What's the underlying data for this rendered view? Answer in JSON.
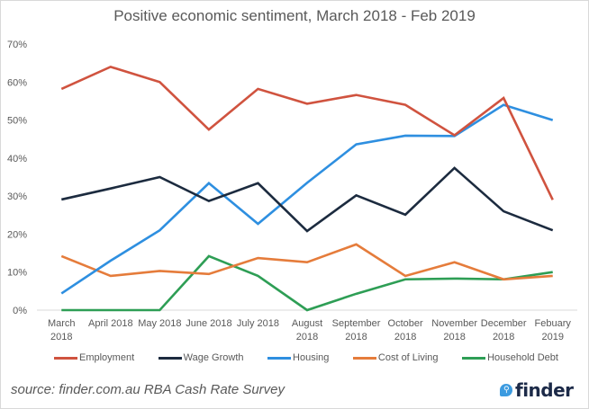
{
  "chart_data": {
    "type": "line",
    "title": "Positive economic sentiment, March 2018 - Feb 2019",
    "xlabel": "",
    "ylabel": "",
    "ylim": [
      0,
      70
    ],
    "yticks": [
      "0%",
      "10%",
      "20%",
      "30%",
      "40%",
      "50%",
      "60%",
      "70%"
    ],
    "ytick_values": [
      0,
      10,
      20,
      30,
      40,
      50,
      60,
      70
    ],
    "grid": false,
    "legend_position": "bottom",
    "categories": [
      [
        "March",
        "2018"
      ],
      [
        "April 2018"
      ],
      [
        "May 2018"
      ],
      [
        "June 2018"
      ],
      [
        "July 2018"
      ],
      [
        "August",
        "2018"
      ],
      [
        "September",
        "2018"
      ],
      [
        "October",
        "2018"
      ],
      [
        "November",
        "2018"
      ],
      [
        "December",
        "2018"
      ],
      [
        "Febuary",
        "2019"
      ]
    ],
    "series": [
      {
        "name": "Employment",
        "color": "#d0533f",
        "values": [
          58.2,
          64,
          60,
          47.5,
          58.2,
          54.3,
          56.6,
          54,
          46,
          55.8,
          29
        ]
      },
      {
        "name": "Wage Growth",
        "color": "#1c2b3f",
        "values": [
          29.1,
          32,
          35,
          28.7,
          33.4,
          20.8,
          30.2,
          25.1,
          37.4,
          26,
          21
        ]
      },
      {
        "name": "Housing",
        "color": "#2e8fe0",
        "values": [
          4.4,
          13,
          21,
          33.4,
          22.7,
          33.5,
          43.6,
          45.9,
          45.8,
          54,
          50
        ]
      },
      {
        "name": "Cost of Living",
        "color": "#e57c3b",
        "values": [
          14.2,
          9,
          10.3,
          9.5,
          13.7,
          12.6,
          17.3,
          9,
          12.6,
          8.1,
          9
        ]
      },
      {
        "name": "Household Debt",
        "color": "#2e9e55",
        "values": [
          0,
          0,
          0,
          14.2,
          9,
          0,
          4.3,
          8.1,
          8.3,
          8.1,
          10
        ]
      }
    ]
  },
  "footer": {
    "source": "source: finder.com.au RBA Cash Rate Survey",
    "logo_text": "finder"
  },
  "colors": {
    "axis": "#d9d9d9",
    "text": "#595959"
  }
}
